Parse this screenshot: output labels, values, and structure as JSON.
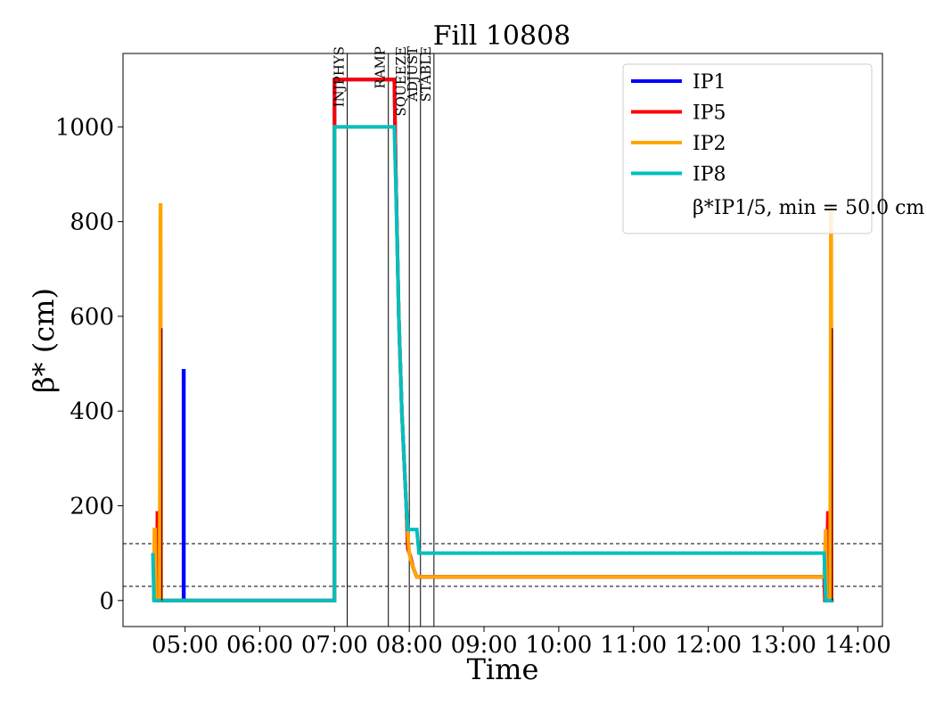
{
  "chart_data": {
    "type": "line",
    "title": "Fill 10808",
    "xlabel": "Time",
    "ylabel": "β* (cm)",
    "ylim": [
      -55,
      1155
    ],
    "xlim_hours": [
      4.17,
      14.33
    ],
    "yticks": [
      0,
      200,
      400,
      600,
      800,
      1000
    ],
    "xticks": [
      {
        "t": 5,
        "label": "05:00"
      },
      {
        "t": 6,
        "label": "06:00"
      },
      {
        "t": 7,
        "label": "07:00"
      },
      {
        "t": 8,
        "label": "08:00"
      },
      {
        "t": 9,
        "label": "09:00"
      },
      {
        "t": 10,
        "label": "10:00"
      },
      {
        "t": 11,
        "label": "11:00"
      },
      {
        "t": 12,
        "label": "12:00"
      },
      {
        "t": 13,
        "label": "13:00"
      },
      {
        "t": 14,
        "label": "14:00"
      }
    ],
    "hlines": [
      30,
      120
    ],
    "phases": [
      {
        "t": 7.17,
        "label": "INJPHYS"
      },
      {
        "t": 7.72,
        "label": "RAMP"
      },
      {
        "t": 8.0,
        "label": "SQUEEZE"
      },
      {
        "t": 8.15,
        "label": "ADJUST"
      },
      {
        "t": 8.33,
        "label": "STABLE"
      }
    ],
    "legend": {
      "position": "upper-right",
      "note": "β*IP1/5, min = 50.0 cm"
    },
    "series": [
      {
        "name": "IP1",
        "color": "#0000ff",
        "points": [
          [
            4.6,
            0
          ],
          [
            4.98,
            0
          ],
          [
            4.98,
            485
          ],
          [
            4.985,
            485
          ],
          [
            4.985,
            0
          ],
          [
            7.0,
            0
          ],
          [
            7.0,
            1100
          ],
          [
            7.8,
            1100
          ],
          [
            7.82,
            900
          ],
          [
            7.86,
            600
          ],
          [
            7.9,
            400
          ],
          [
            7.93,
            300
          ],
          [
            7.96,
            200
          ],
          [
            7.98,
            110
          ],
          [
            8.0,
            100
          ],
          [
            8.02,
            90
          ],
          [
            8.05,
            70
          ],
          [
            8.1,
            50
          ],
          [
            13.55,
            50
          ],
          [
            13.57,
            0
          ],
          [
            13.68,
            0
          ]
        ]
      },
      {
        "name": "IP5",
        "color": "#ff0000",
        "points": [
          [
            4.6,
            0
          ],
          [
            4.62,
            0
          ],
          [
            4.63,
            185
          ],
          [
            4.64,
            185
          ],
          [
            4.65,
            0
          ],
          [
            7.0,
            0
          ],
          [
            7.0,
            1100
          ],
          [
            7.8,
            1100
          ],
          [
            7.82,
            900
          ],
          [
            7.86,
            600
          ],
          [
            7.9,
            400
          ],
          [
            7.93,
            300
          ],
          [
            7.96,
            200
          ],
          [
            7.98,
            110
          ],
          [
            8.0,
            100
          ],
          [
            8.02,
            90
          ],
          [
            8.05,
            70
          ],
          [
            8.1,
            50
          ],
          [
            13.55,
            50
          ],
          [
            13.56,
            0
          ],
          [
            13.58,
            0
          ],
          [
            13.6,
            185
          ],
          [
            13.62,
            185
          ],
          [
            13.63,
            0
          ],
          [
            13.68,
            0
          ]
        ]
      },
      {
        "name": "IP2",
        "color": "#ffa500",
        "points": [
          [
            4.58,
            0
          ],
          [
            4.59,
            150
          ],
          [
            4.6,
            150
          ],
          [
            4.61,
            0
          ],
          [
            4.66,
            0
          ],
          [
            4.67,
            835
          ],
          [
            4.675,
            835
          ],
          [
            4.68,
            0
          ],
          [
            7.0,
            0
          ],
          [
            7.0,
            1000
          ],
          [
            7.8,
            1000
          ],
          [
            7.82,
            880
          ],
          [
            7.86,
            600
          ],
          [
            7.9,
            400
          ],
          [
            7.93,
            300
          ],
          [
            7.96,
            200
          ],
          [
            7.98,
            140
          ],
          [
            8.0,
            100
          ],
          [
            8.02,
            85
          ],
          [
            8.05,
            70
          ],
          [
            8.1,
            50
          ],
          [
            13.55,
            50
          ],
          [
            13.57,
            150
          ],
          [
            13.58,
            0
          ],
          [
            13.63,
            0
          ],
          [
            13.64,
            835
          ],
          [
            13.645,
            835
          ],
          [
            13.65,
            0
          ],
          [
            13.68,
            0
          ]
        ]
      },
      {
        "name": "IP8",
        "color": "#00bfbf",
        "points": [
          [
            4.57,
            100
          ],
          [
            4.585,
            0
          ],
          [
            7.0,
            0
          ],
          [
            7.0,
            1000
          ],
          [
            7.8,
            1000
          ],
          [
            7.82,
            880
          ],
          [
            7.86,
            600
          ],
          [
            7.9,
            400
          ],
          [
            7.93,
            300
          ],
          [
            7.96,
            200
          ],
          [
            7.98,
            150
          ],
          [
            8.1,
            150
          ],
          [
            8.13,
            100
          ],
          [
            13.55,
            100
          ],
          [
            13.57,
            0
          ],
          [
            13.68,
            0
          ]
        ]
      }
    ],
    "thin_spikes": [
      {
        "t": 4.69,
        "value": 575,
        "color": "#7f0000"
      },
      {
        "t": 13.66,
        "value": 575,
        "color": "#7f0000"
      }
    ]
  }
}
